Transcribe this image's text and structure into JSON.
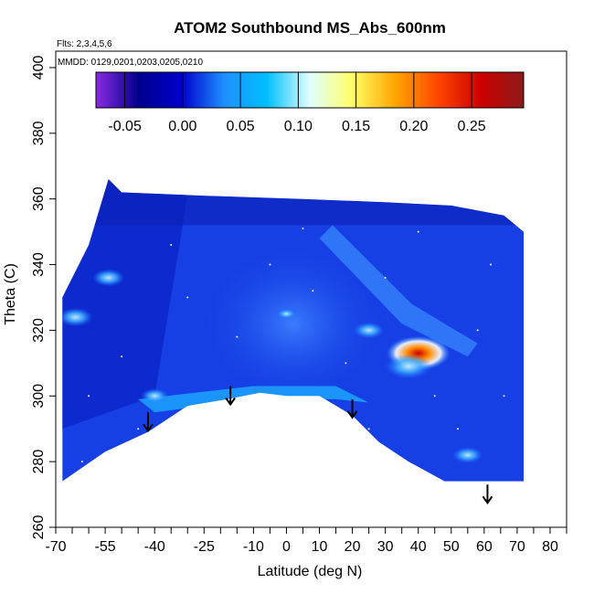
{
  "chart_data": {
    "type": "heatmap",
    "title": "ATOM2 Southbound MS_Abs_600nm",
    "annotations": [
      "Flts: 2,3,4,5,6",
      "MMDD: 0129,0201,0203,0205,0210"
    ],
    "xlabel": "Latitude (deg N)",
    "ylabel": "Theta (C)",
    "xlim": [
      -70,
      85
    ],
    "ylim": [
      260,
      405
    ],
    "x_tick_labels": [
      "-70",
      "-55",
      "-40",
      "-25",
      "-10",
      "0",
      "10",
      "20",
      "30",
      "40",
      "50",
      "60",
      "70",
      "80"
    ],
    "y_tick_labels": [
      "260",
      "280",
      "300",
      "320",
      "340",
      "360",
      "380",
      "400"
    ],
    "colorbar": {
      "range": [
        -0.075,
        0.295
      ],
      "tick_labels": [
        "-0.05",
        "0.00",
        "0.05",
        "0.10",
        "0.15",
        "0.20",
        "0.25"
      ],
      "tick_values": [
        -0.05,
        0.0,
        0.05,
        0.1,
        0.15,
        0.2,
        0.25
      ],
      "colors": [
        "#8a2be2",
        "#00008b",
        "#0000cd",
        "#1e90ff",
        "#00bfff",
        "#e0ffff",
        "#ffff66",
        "#ffa500",
        "#ff4500",
        "#cc0000",
        "#8b1a1a"
      ]
    },
    "data_extent": {
      "x_range": [
        -68,
        72
      ],
      "theta_range": [
        274,
        366
      ],
      "bottom_boundary": [
        {
          "lat": -68,
          "theta": 274
        },
        {
          "lat": -55,
          "theta": 283
        },
        {
          "lat": -42,
          "theta": 289
        },
        {
          "lat": -30,
          "theta": 297
        },
        {
          "lat": -18,
          "theta": 299
        },
        {
          "lat": -8,
          "theta": 301
        },
        {
          "lat": 0,
          "theta": 300
        },
        {
          "lat": 10,
          "theta": 300
        },
        {
          "lat": 20,
          "theta": 294
        },
        {
          "lat": 28,
          "theta": 286
        },
        {
          "lat": 37,
          "theta": 280
        },
        {
          "lat": 48,
          "theta": 274
        },
        {
          "lat": 60,
          "theta": 274
        },
        {
          "lat": 72,
          "theta": 274
        }
      ],
      "top_boundary": [
        {
          "lat": -68,
          "theta": 330
        },
        {
          "lat": -60,
          "theta": 346
        },
        {
          "lat": -54,
          "theta": 366
        },
        {
          "lat": -50,
          "theta": 362
        },
        {
          "lat": -25,
          "theta": 361
        },
        {
          "lat": 5,
          "theta": 360
        },
        {
          "lat": 30,
          "theta": 359
        },
        {
          "lat": 50,
          "theta": 358
        },
        {
          "lat": 66,
          "theta": 355
        },
        {
          "lat": 72,
          "theta": 350
        }
      ]
    },
    "features": [
      {
        "lat": 40,
        "theta": 313,
        "value": 0.22
      },
      {
        "lat": 37,
        "theta": 309,
        "value": 0.14
      },
      {
        "lat": -64,
        "theta": 324,
        "value": 0.09
      },
      {
        "lat": -54,
        "theta": 336,
        "value": 0.08
      },
      {
        "lat": 25,
        "theta": 320,
        "value": 0.07
      },
      {
        "lat": -40,
        "theta": 300,
        "value": 0.06
      },
      {
        "lat": 55,
        "theta": 282,
        "value": 0.07
      },
      {
        "lat": 0,
        "theta": 325,
        "value": 0.02
      }
    ],
    "markers": [
      {
        "type": "arrow-down",
        "lat": -42,
        "theta": 295
      },
      {
        "type": "arrow-down",
        "lat": -17,
        "theta": 303
      },
      {
        "type": "arrow-down",
        "lat": 20,
        "theta": 299
      },
      {
        "type": "arrow-down",
        "lat": 61,
        "theta": 273
      }
    ]
  }
}
